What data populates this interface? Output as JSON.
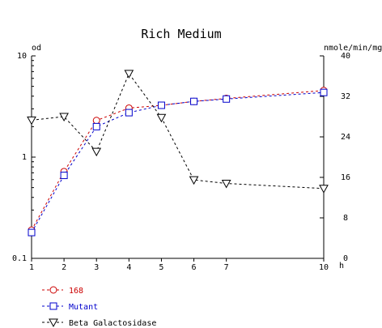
{
  "chart_data": {
    "type": "line",
    "title": "Rich Medium",
    "left_axis_unit": "od",
    "right_axis_unit": "nmole/min/mg",
    "x_unit": "h",
    "x_ticks": [
      1,
      2,
      3,
      4,
      5,
      6,
      7,
      10
    ],
    "x_range": [
      1,
      10
    ],
    "y_left": {
      "scale": "log",
      "range": [
        0.1,
        10
      ],
      "ticks": [
        "10",
        "1",
        "0.1"
      ]
    },
    "y_right": {
      "scale": "linear",
      "range": [
        0,
        40
      ],
      "ticks": [
        "40",
        "32",
        "24",
        "16",
        "8",
        "0"
      ]
    },
    "series": [
      {
        "name": "168",
        "axis": "left",
        "marker": "circle",
        "color": "#cc0000",
        "x": [
          1,
          2,
          3,
          4,
          5,
          6,
          7,
          10
        ],
        "y": [
          0.19,
          0.72,
          2.3,
          3.05,
          3.25,
          3.55,
          3.8,
          4.55
        ]
      },
      {
        "name": "Mutant",
        "axis": "left",
        "marker": "square",
        "color": "#0000cc",
        "x": [
          1,
          2,
          3,
          4,
          5,
          6,
          7,
          10
        ],
        "y": [
          0.18,
          0.66,
          2.0,
          2.75,
          3.25,
          3.55,
          3.75,
          4.35
        ]
      },
      {
        "name": "Beta Galactosidase",
        "axis": "right",
        "marker": "triangle-down",
        "color": "#000000",
        "x": [
          1,
          2,
          3,
          4,
          5,
          6,
          7,
          10
        ],
        "y": [
          27.3,
          28.0,
          21.1,
          36.5,
          27.8,
          15.5,
          14.8,
          13.8
        ]
      }
    ],
    "legend": {
      "placement": "bottom-left"
    }
  }
}
